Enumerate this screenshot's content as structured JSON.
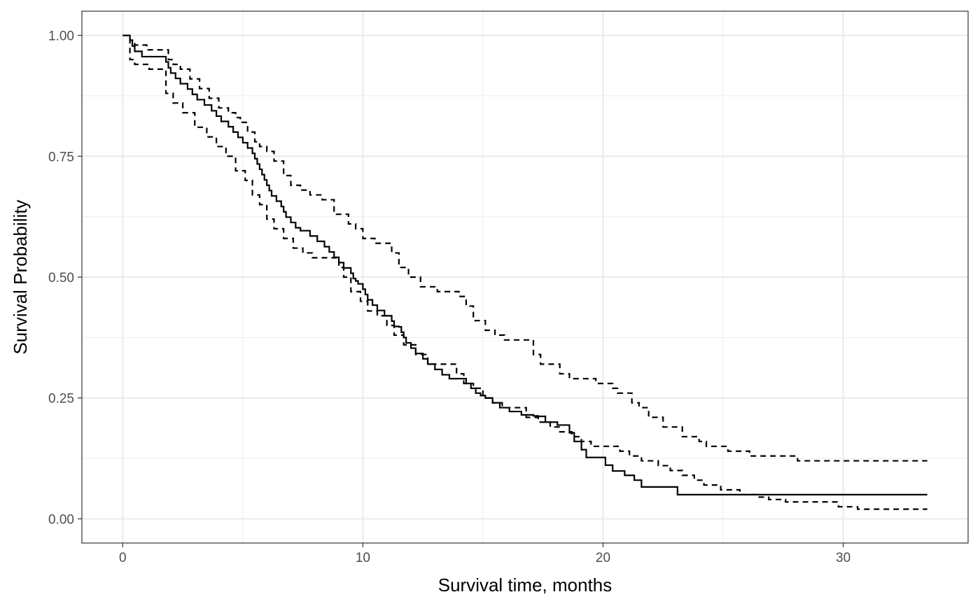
{
  "chart_data": {
    "type": "line",
    "title": "",
    "xlabel": "Survival time, months",
    "ylabel": "Survival Probability",
    "xlim": [
      -1.7,
      35.2
    ],
    "ylim": [
      -0.05,
      1.05
    ],
    "x_ticks": [
      0,
      10,
      20,
      30
    ],
    "x_tick_labels": [
      "0",
      "10",
      "20",
      "30"
    ],
    "y_ticks": [
      0,
      0.25,
      0.5,
      0.75,
      1
    ],
    "y_tick_labels": [
      "0.00",
      "0.25",
      "0.50",
      "0.75",
      "1.00"
    ],
    "grid": true,
    "legend": "none",
    "theme": "bw",
    "series": [
      {
        "style": "solid",
        "x": [
          0,
          0.3,
          0.4,
          0.5,
          0.8,
          1.1,
          1.8,
          1.9,
          2.0,
          2.2,
          2.4,
          2.7,
          2.9,
          3.1,
          3.4,
          3.7,
          3.9,
          4.1,
          4.4,
          4.6,
          4.8,
          5.0,
          5.2,
          5.4,
          5.5,
          5.6,
          5.7,
          5.8,
          5.9,
          6.0,
          6.1,
          6.2,
          6.4,
          6.6,
          6.7,
          6.8,
          7.0,
          7.2,
          7.4,
          7.6,
          7.8,
          8.1,
          8.4,
          8.6,
          8.8,
          9.0,
          9.2,
          9.5,
          9.6,
          9.7,
          9.8,
          10.0,
          10.1,
          10.2,
          10.4,
          10.6,
          10.9,
          11.2,
          11.3,
          11.5,
          11.6,
          11.7,
          11.8,
          12.0,
          12.2,
          12.5,
          12.7,
          13.0,
          13.3,
          13.6,
          14.1,
          14.3,
          14.5,
          14.7,
          14.9,
          15.1,
          15.4,
          15.7,
          16.1,
          16.6,
          17.1,
          17.3,
          17.6,
          18.1,
          18.6,
          18.8,
          19.1,
          19.3,
          19.5,
          20.1,
          20.4,
          20.9,
          21.3,
          21.6,
          22.0,
          22.6,
          23.1,
          23.6,
          24.0,
          24.2,
          24.4,
          25.2,
          25.9,
          26.6,
          26.9,
          27.5,
          28.3,
          28.6,
          29.0,
          30.1,
          31.4,
          33.5
        ],
        "y": [
          1.0,
          0.99,
          0.978,
          0.967,
          0.956,
          0.956,
          0.945,
          0.933,
          0.922,
          0.911,
          0.9,
          0.889,
          0.878,
          0.867,
          0.856,
          0.844,
          0.833,
          0.822,
          0.811,
          0.8,
          0.789,
          0.778,
          0.767,
          0.756,
          0.745,
          0.734,
          0.723,
          0.712,
          0.701,
          0.69,
          0.679,
          0.668,
          0.657,
          0.646,
          0.635,
          0.624,
          0.613,
          0.602,
          0.596,
          0.596,
          0.585,
          0.574,
          0.563,
          0.552,
          0.541,
          0.53,
          0.519,
          0.508,
          0.497,
          0.492,
          0.486,
          0.475,
          0.464,
          0.453,
          0.442,
          0.431,
          0.42,
          0.409,
          0.398,
          0.397,
          0.386,
          0.375,
          0.364,
          0.353,
          0.342,
          0.331,
          0.32,
          0.309,
          0.298,
          0.29,
          0.29,
          0.28,
          0.27,
          0.26,
          0.255,
          0.25,
          0.24,
          0.23,
          0.222,
          0.215,
          0.213,
          0.212,
          0.2,
          0.194,
          0.178,
          0.16,
          0.143,
          0.127,
          0.127,
          0.111,
          0.099,
          0.09,
          0.08,
          0.066,
          0.066,
          0.066,
          0.05,
          0.05,
          0.05,
          0.05,
          0.05,
          0.05,
          0.05,
          0.05,
          0.05,
          0.05,
          0.05,
          0.05,
          0.05,
          0.05,
          0.05,
          0.05
        ]
      },
      {
        "style": "dashed",
        "x": [
          0,
          0.3,
          0.5,
          1.0,
          1.9,
          2.1,
          2.4,
          2.8,
          3.2,
          3.6,
          4.0,
          4.4,
          4.7,
          4.9,
          5.2,
          5.5,
          5.7,
          6.0,
          6.3,
          6.7,
          7.0,
          7.4,
          7.8,
          8.3,
          8.8,
          9.4,
          9.7,
          10.0,
          10.5,
          11.2,
          11.5,
          11.9,
          12.4,
          13.1,
          14.0,
          14.3,
          14.6,
          15.1,
          15.5,
          15.9,
          16.4,
          17.1,
          17.4,
          18.2,
          18.6,
          19.2,
          19.7,
          20.4,
          20.6,
          21.2,
          21.5,
          21.9,
          22.5,
          23.3,
          24.0,
          24.3,
          24.7,
          25.2,
          26.1,
          26.9,
          27.3,
          28.1,
          28.9,
          29.1,
          30.0,
          30.8,
          31.5,
          32.2,
          33.5
        ],
        "y": [
          1.0,
          0.99,
          0.98,
          0.97,
          0.95,
          0.94,
          0.93,
          0.91,
          0.89,
          0.87,
          0.85,
          0.84,
          0.83,
          0.82,
          0.8,
          0.78,
          0.77,
          0.76,
          0.74,
          0.71,
          0.69,
          0.68,
          0.67,
          0.66,
          0.63,
          0.61,
          0.6,
          0.58,
          0.57,
          0.55,
          0.52,
          0.5,
          0.48,
          0.47,
          0.46,
          0.44,
          0.41,
          0.39,
          0.38,
          0.37,
          0.37,
          0.34,
          0.32,
          0.3,
          0.29,
          0.29,
          0.28,
          0.27,
          0.26,
          0.24,
          0.23,
          0.21,
          0.19,
          0.17,
          0.16,
          0.15,
          0.15,
          0.14,
          0.13,
          0.13,
          0.13,
          0.12,
          0.12,
          0.12,
          0.12,
          0.12,
          0.12,
          0.12,
          0.12
        ]
      },
      {
        "style": "dashed",
        "x": [
          0,
          0.3,
          0.5,
          1.1,
          1.8,
          2.1,
          2.5,
          3.0,
          3.5,
          3.9,
          4.3,
          4.7,
          5.1,
          5.4,
          5.7,
          6.0,
          6.3,
          6.7,
          7.1,
          7.5,
          7.9,
          8.3,
          9.0,
          9.2,
          9.5,
          9.9,
          10.2,
          10.6,
          11.0,
          11.3,
          11.7,
          12.2,
          12.7,
          13.3,
          13.9,
          14.2,
          14.6,
          15.0,
          15.4,
          15.8,
          16.3,
          16.8,
          17.3,
          17.8,
          18.2,
          18.7,
          19.1,
          19.5,
          20.0,
          20.7,
          21.1,
          21.6,
          22.3,
          22.8,
          23.3,
          23.8,
          24.2,
          24.9,
          25.7,
          26.4,
          26.9,
          27.6,
          28.4,
          29.0,
          29.8,
          30.6,
          31.7,
          32.4,
          33.5
        ],
        "y": [
          1.0,
          0.95,
          0.94,
          0.93,
          0.88,
          0.86,
          0.84,
          0.81,
          0.79,
          0.77,
          0.75,
          0.72,
          0.7,
          0.67,
          0.65,
          0.62,
          0.6,
          0.58,
          0.56,
          0.55,
          0.54,
          0.54,
          0.52,
          0.5,
          0.47,
          0.45,
          0.43,
          0.42,
          0.4,
          0.38,
          0.36,
          0.34,
          0.32,
          0.32,
          0.3,
          0.28,
          0.27,
          0.25,
          0.24,
          0.23,
          0.23,
          0.21,
          0.2,
          0.19,
          0.18,
          0.17,
          0.16,
          0.15,
          0.15,
          0.14,
          0.13,
          0.12,
          0.11,
          0.1,
          0.09,
          0.08,
          0.07,
          0.06,
          0.05,
          0.045,
          0.04,
          0.035,
          0.035,
          0.035,
          0.025,
          0.02,
          0.02,
          0.02,
          0.02
        ]
      }
    ]
  }
}
